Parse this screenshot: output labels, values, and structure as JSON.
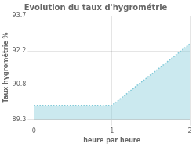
{
  "chart_data": {
    "type": "area",
    "title": "Evolution du taux d'hygrométrie",
    "xlabel": "heure par heure",
    "ylabel": "Taux hygrométrie %",
    "x": [
      0,
      1,
      2
    ],
    "values": [
      89.9,
      89.9,
      92.5
    ],
    "color": "#7ec8d8",
    "line_style": "dotted",
    "xlim": [
      0,
      2
    ],
    "ylim": [
      89.3,
      93.7
    ],
    "xticks": [
      0,
      1,
      2
    ],
    "yticks": [
      89.3,
      90.8,
      92.2,
      93.7
    ],
    "grid": true
  }
}
